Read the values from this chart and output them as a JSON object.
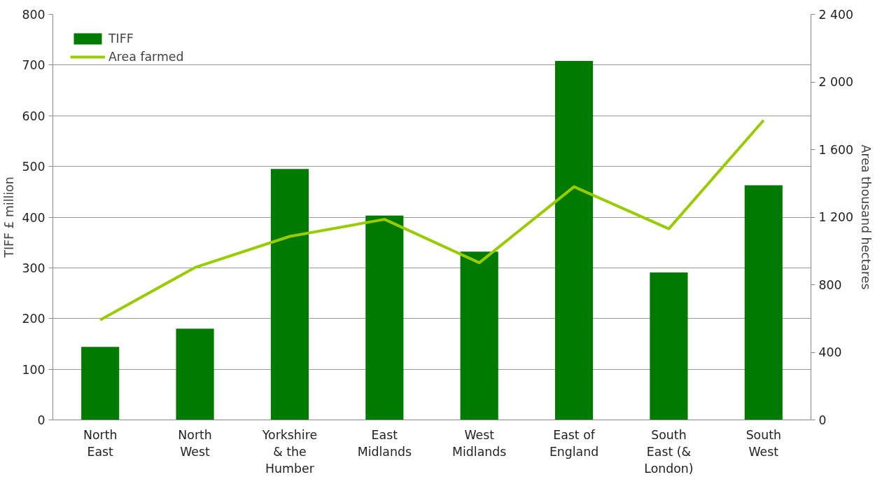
{
  "chart_data": {
    "type": "bar",
    "categories": [
      "North East",
      "North West",
      "Yorkshire & the Humber",
      "East Midlands",
      "West Midlands",
      "East of England",
      "South East (& London)",
      "South West"
    ],
    "series": [
      {
        "name": "TIFF",
        "color": "#007a00",
        "values": [
          144,
          180,
          495,
          403,
          332,
          708,
          291,
          463
        ]
      },
      {
        "name": "Area farmed",
        "type": "line",
        "axis": "y2",
        "color": "#99cc00",
        "values": [
          592,
          902,
          1086,
          1187,
          930,
          1380,
          1131,
          1773
        ]
      }
    ],
    "ylabel": "TIFF £ million",
    "y2label": "Area thousand hectares",
    "ylim": [
      0,
      800
    ],
    "yticks": [
      0,
      100,
      200,
      300,
      400,
      500,
      600,
      700,
      800
    ],
    "y2lim": [
      0,
      2400
    ],
    "y2ticks": [
      0,
      400,
      800,
      {
        "value": 1200,
        "label": "1 200"
      },
      {
        "value": 1600,
        "label": "1 600"
      },
      {
        "value": 2000,
        "label": "2 000"
      },
      {
        "value": 2400,
        "label": "2 400"
      }
    ],
    "grid": "y",
    "legend": "top left",
    "marker": "none",
    "line_style": "solid"
  }
}
